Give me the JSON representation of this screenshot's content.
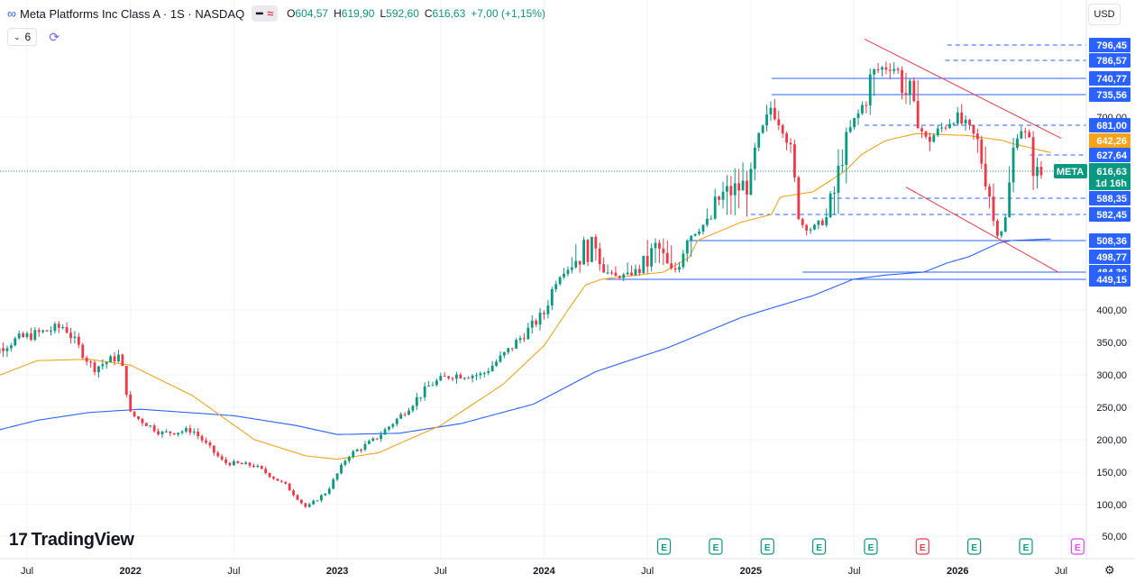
{
  "header": {
    "symbol_title": "Meta Platforms Inc Class A · 1S · NASDAQ",
    "pill_icons": [
      "minus-icon",
      "approx-icon"
    ],
    "ohlc": [
      {
        "k": "O",
        "v": "604,57"
      },
      {
        "k": "H",
        "v": "619,90"
      },
      {
        "k": "L",
        "v": "592,60"
      },
      {
        "k": "C",
        "v": "616,63"
      },
      {
        "k": "",
        "v": "+7,00 (+1,15%)"
      }
    ],
    "indicator_count": "6",
    "currency": "USD"
  },
  "brand": {
    "name": "TradingView"
  },
  "colors": {
    "up": "#089981",
    "down": "#f23645",
    "ma_short": "#f7a21b",
    "ma_long": "#2962ff",
    "channel": "#f23645",
    "level": "#2962ff"
  },
  "chart_data": {
    "type": "candlestick",
    "x_ticks": [
      {
        "label": "Jul",
        "t": 2021.5,
        "bold": false
      },
      {
        "label": "2022",
        "t": 2022.0,
        "bold": true
      },
      {
        "label": "Jul",
        "t": 2022.5,
        "bold": false
      },
      {
        "label": "2023",
        "t": 2023.0,
        "bold": true
      },
      {
        "label": "Jul",
        "t": 2023.5,
        "bold": false
      },
      {
        "label": "2024",
        "t": 2024.0,
        "bold": true
      },
      {
        "label": "Jul",
        "t": 2024.5,
        "bold": false
      },
      {
        "label": "2025",
        "t": 2025.0,
        "bold": true
      },
      {
        "label": "Jul",
        "t": 2025.5,
        "bold": false
      },
      {
        "label": "2026",
        "t": 2026.0,
        "bold": true
      },
      {
        "label": "Jul",
        "t": 2026.5,
        "bold": false
      }
    ],
    "y_ticks": [
      "50,00",
      "100,00",
      "150,00",
      "200,00",
      "250,00",
      "300,00",
      "350,00",
      "400,00",
      "700,00"
    ],
    "y_tick_values": [
      50,
      100,
      150,
      200,
      250,
      300,
      350,
      400,
      700
    ],
    "ylim": [
      20,
      820
    ],
    "xlim": [
      2021.25,
      2026.75
    ],
    "price_labels": [
      {
        "value": 796.45,
        "text": "796,45",
        "bg": "#2962ff"
      },
      {
        "value": 786.57,
        "text": "786,57",
        "bg": "#2962ff"
      },
      {
        "value": 740.77,
        "text": "740,77",
        "bg": "#2962ff"
      },
      {
        "value": 735.56,
        "text": "735,56",
        "bg": "#2962ff"
      },
      {
        "value": 681.0,
        "text": "681,00",
        "bg": "#2962ff"
      },
      {
        "value": 642.26,
        "text": "642,26",
        "bg": "#f7a21b"
      },
      {
        "value": 627.64,
        "text": "627,64",
        "bg": "#2962ff"
      },
      {
        "value": 588.35,
        "text": "588,35",
        "bg": "#2962ff"
      },
      {
        "value": 582.45,
        "text": "582,45",
        "bg": "#2962ff"
      },
      {
        "value": 508.36,
        "text": "508,36",
        "bg": "#2962ff"
      },
      {
        "value": 498.77,
        "text": "498,77",
        "bg": "#2962ff"
      },
      {
        "value": 484.3,
        "text": "484,30",
        "bg": "#2962ff"
      },
      {
        "value": 449.15,
        "text": "449,15",
        "bg": "#2962ff"
      }
    ],
    "last_price": {
      "value": 616.63,
      "symbol": "META",
      "price": "616,63",
      "countdown": "1d 16h"
    },
    "horizontal_levels": [
      {
        "value": 796.45,
        "t0": 2025.95,
        "style": "dashed"
      },
      {
        "value": 786.57,
        "t0": 2025.94,
        "style": "dashed"
      },
      {
        "value": 740.77,
        "t0": 2025.1,
        "style": "solid"
      },
      {
        "value": 735.56,
        "t0": 2025.1,
        "style": "solid"
      },
      {
        "value": 681.0,
        "t0": 2025.55,
        "style": "dashed"
      },
      {
        "value": 627.64,
        "t0": 2026.35,
        "style": "dashed"
      },
      {
        "value": 588.35,
        "t0": 2025.3,
        "style": "dashed"
      },
      {
        "value": 582.45,
        "t0": 2025.0,
        "style": "dashed"
      },
      {
        "value": 508.36,
        "t0": 2024.7,
        "style": "solid"
      },
      {
        "value": 484.3,
        "t0": 2025.25,
        "style": "solid"
      },
      {
        "value": 449.15,
        "t0": 2024.3,
        "style": "solid"
      }
    ],
    "channel": {
      "upper": [
        [
          2025.55,
          812
        ],
        [
          2026.5,
          648
        ]
      ],
      "lower": [
        [
          2025.75,
          600
        ],
        [
          2026.49,
          482
        ]
      ]
    },
    "series": [
      {
        "name": "price",
        "kind": "candles",
        "anchors": [
          [
            2021.25,
            320
          ],
          [
            2021.45,
            355
          ],
          [
            2021.68,
            375
          ],
          [
            2021.82,
            310
          ],
          [
            2021.95,
            330
          ],
          [
            2022.0,
            240
          ],
          [
            2022.15,
            210
          ],
          [
            2022.3,
            215
          ],
          [
            2022.45,
            165
          ],
          [
            2022.6,
            160
          ],
          [
            2022.75,
            130
          ],
          [
            2022.85,
            95
          ],
          [
            2022.95,
            120
          ],
          [
            2023.05,
            175
          ],
          [
            2023.18,
            200
          ],
          [
            2023.3,
            235
          ],
          [
            2023.45,
            285
          ],
          [
            2023.55,
            300
          ],
          [
            2023.7,
            300
          ],
          [
            2023.82,
            335
          ],
          [
            2024.0,
            395
          ],
          [
            2024.1,
            490
          ],
          [
            2024.25,
            510
          ],
          [
            2024.35,
            460
          ],
          [
            2024.55,
            505
          ],
          [
            2024.62,
            480
          ],
          [
            2024.72,
            530
          ],
          [
            2024.85,
            590
          ],
          [
            2025.0,
            605
          ],
          [
            2025.1,
            720
          ],
          [
            2025.15,
            680
          ],
          [
            2025.25,
            555
          ],
          [
            2025.3,
            540
          ],
          [
            2025.4,
            590
          ],
          [
            2025.5,
            690
          ],
          [
            2025.6,
            760
          ],
          [
            2025.68,
            775
          ],
          [
            2025.78,
            720
          ],
          [
            2025.85,
            640
          ],
          [
            2025.98,
            700
          ],
          [
            2026.05,
            675
          ],
          [
            2026.15,
            600
          ],
          [
            2026.2,
            522
          ],
          [
            2026.3,
            680
          ],
          [
            2026.38,
            610
          ],
          [
            2026.42,
            616
          ]
        ]
      },
      {
        "name": "ma_short",
        "kind": "line",
        "anchors": [
          [
            2021.25,
            285
          ],
          [
            2021.55,
            322
          ],
          [
            2021.8,
            324
          ],
          [
            2022.0,
            315
          ],
          [
            2022.3,
            268
          ],
          [
            2022.6,
            200
          ],
          [
            2022.85,
            175
          ],
          [
            2023.0,
            170
          ],
          [
            2023.2,
            180
          ],
          [
            2023.5,
            222
          ],
          [
            2023.8,
            285
          ],
          [
            2024.0,
            345
          ],
          [
            2024.2,
            440
          ],
          [
            2024.45,
            470
          ],
          [
            2024.7,
            498
          ],
          [
            2024.95,
            560
          ],
          [
            2025.15,
            590
          ],
          [
            2025.3,
            595
          ],
          [
            2025.55,
            630
          ],
          [
            2025.8,
            660
          ],
          [
            2026.05,
            655
          ],
          [
            2026.25,
            640
          ],
          [
            2026.45,
            630
          ]
        ]
      },
      {
        "name": "ma_long",
        "kind": "line",
        "anchors": [
          [
            2021.25,
            206
          ],
          [
            2021.55,
            230
          ],
          [
            2021.8,
            242
          ],
          [
            2022.05,
            247
          ],
          [
            2022.5,
            237
          ],
          [
            2022.8,
            222
          ],
          [
            2023.0,
            208
          ],
          [
            2023.3,
            210
          ],
          [
            2023.6,
            225
          ],
          [
            2023.95,
            255
          ],
          [
            2024.25,
            305
          ],
          [
            2024.6,
            342
          ],
          [
            2024.95,
            388
          ],
          [
            2025.3,
            423
          ],
          [
            2025.65,
            470
          ],
          [
            2025.95,
            493
          ],
          [
            2026.2,
            507
          ],
          [
            2026.45,
            513
          ]
        ]
      }
    ],
    "event_markers": {
      "icon": "earnings-icon",
      "label": "E",
      "times": [
        2024.58,
        2024.83,
        2025.08,
        2025.33,
        2025.58,
        2025.83,
        2026.08,
        2026.33,
        2026.58
      ],
      "colors": [
        "#089981",
        "#089981",
        "#089981",
        "#089981",
        "#089981",
        "#f23645",
        "#089981",
        "#089981",
        "#e040fb"
      ]
    }
  }
}
